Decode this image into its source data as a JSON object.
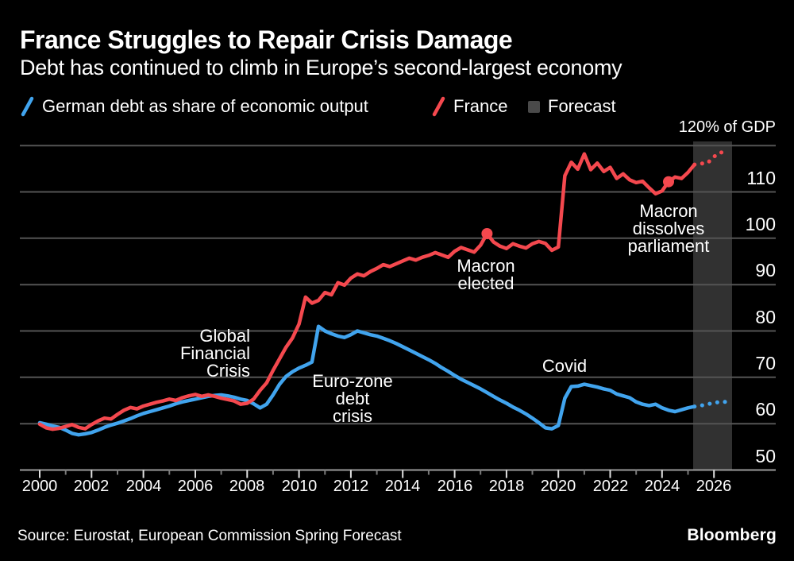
{
  "header": {
    "title": "France Struggles to Repair Crisis Damage",
    "subtitle": "Debt has continued to climb in Europe’s second-largest economy"
  },
  "legend": [
    {
      "label": "German debt as share of economic output",
      "color": "#41a4ee",
      "type": "line"
    },
    {
      "label": "France",
      "color": "#f4484e",
      "type": "line"
    },
    {
      "label": "Forecast",
      "color": "#4a4a4a",
      "type": "box"
    }
  ],
  "axis_unit_label": "120% of GDP",
  "source": "Source: Eurostat, European Commission Spring Forecast",
  "brand": "Bloomberg",
  "colors": {
    "background": "#000000",
    "grid": "#545454",
    "axis": "#9c9c9c",
    "major_tick": "#e0e0e0",
    "minor_tick": "#7a7a7a",
    "forecast_band": "#313131",
    "text": "#ffffff",
    "france": "#f4484e",
    "germany": "#41a4ee"
  },
  "chart_data": {
    "type": "line",
    "title": "France Struggles to Repair Crisis Damage",
    "x_start": 2000,
    "x_step": 0.25,
    "xlim": [
      2000,
      2026.7
    ],
    "ylim": [
      50,
      120
    ],
    "y_gridlines": [
      60,
      70,
      80,
      90,
      100,
      110,
      120
    ],
    "y_tick_labels": [
      110,
      100,
      90,
      80,
      70,
      60,
      50
    ],
    "x_tick_labels": [
      2000,
      2002,
      2004,
      2006,
      2008,
      2010,
      2012,
      2014,
      2016,
      2018,
      2020,
      2022,
      2024,
      2026
    ],
    "x_minor_ticks": [
      2001,
      2003,
      2005,
      2007,
      2009,
      2011,
      2013,
      2015,
      2017,
      2019,
      2021,
      2023,
      2025
    ],
    "forecast_band": {
      "x0": 2025.2,
      "x1": 2026.7
    },
    "series": [
      {
        "name": "Germany",
        "color": "#41a4ee",
        "values": [
          60.2,
          59.9,
          59.5,
          59.2,
          58.6,
          57.9,
          57.6,
          57.8,
          58.1,
          58.6,
          59.2,
          59.7,
          60.1,
          60.6,
          61.1,
          61.7,
          62.2,
          62.6,
          63.0,
          63.4,
          63.8,
          64.3,
          64.7,
          65.0,
          65.3,
          65.6,
          65.9,
          66.1,
          66.2,
          66.0,
          65.7,
          65.3,
          65.0,
          64.3,
          63.4,
          64.2,
          66.2,
          68.5,
          70.2,
          71.2,
          72.0,
          72.6,
          73.3,
          81.0,
          80.0,
          79.4,
          78.9,
          78.6,
          79.2,
          80.0,
          79.6,
          79.2,
          78.9,
          78.4,
          77.9,
          77.3,
          76.6,
          75.9,
          75.2,
          74.5,
          73.8,
          73.0,
          72.1,
          71.3,
          70.4,
          69.6,
          68.9,
          68.2,
          67.5,
          66.7,
          65.9,
          65.1,
          64.4,
          63.6,
          62.9,
          62.1,
          61.2,
          60.2,
          59.1,
          58.9,
          59.6,
          65.5,
          68.0,
          68.1,
          68.5,
          68.2,
          67.9,
          67.5,
          67.2,
          66.4,
          66.0,
          65.6,
          64.7,
          64.2,
          63.9,
          64.2,
          63.4,
          62.9,
          62.6,
          63.0,
          63.4,
          63.7
        ],
        "forecast": [
          63.7,
          63.9,
          64.2,
          64.5,
          64.7,
          64.7
        ],
        "markers": []
      },
      {
        "name": "France",
        "color": "#f4484e",
        "values": [
          59.9,
          59.1,
          58.8,
          59.0,
          59.4,
          59.8,
          59.2,
          58.9,
          59.8,
          60.6,
          61.2,
          61.0,
          62.0,
          62.9,
          63.5,
          63.2,
          63.8,
          64.2,
          64.6,
          64.9,
          65.3,
          65.0,
          65.6,
          66.0,
          66.3,
          65.9,
          66.2,
          65.9,
          65.5,
          65.2,
          64.9,
          64.2,
          64.4,
          65.3,
          67.2,
          68.8,
          71.5,
          74.0,
          76.5,
          78.5,
          81.5,
          87.3,
          86.0,
          86.6,
          88.3,
          87.8,
          90.4,
          89.9,
          91.4,
          92.3,
          91.9,
          92.8,
          93.5,
          94.3,
          93.9,
          94.5,
          95.1,
          95.7,
          95.3,
          95.9,
          96.3,
          96.9,
          96.4,
          95.9,
          97.2,
          98.0,
          97.5,
          97.0,
          98.5,
          101.0,
          99.2,
          98.3,
          97.8,
          98.8,
          98.3,
          97.9,
          98.8,
          99.3,
          98.9,
          97.4,
          98.1,
          113.5,
          116.4,
          114.9,
          118.2,
          114.8,
          116.2,
          114.4,
          115.3,
          112.9,
          113.9,
          112.6,
          112.0,
          112.3,
          110.9,
          109.6,
          110.2,
          112.2,
          113.2,
          112.9,
          114.2,
          115.9
        ],
        "forecast": [
          115.9,
          116.1,
          116.2,
          117.6,
          118.5,
          118.5
        ],
        "markers": [
          {
            "x": 2017.25,
            "y": 101.0
          },
          {
            "x": 2024.25,
            "y": 112.2
          }
        ]
      }
    ],
    "annotations": [
      {
        "id": "global-financial-crisis",
        "lines": [
          "Global",
          "Financial",
          "Crisis"
        ],
        "year": 2008.1,
        "value": 78.9,
        "align": "right"
      },
      {
        "id": "euro-zone-debt-crisis",
        "lines": [
          "Euro-zone",
          "debt",
          "crisis"
        ],
        "year": 2012.05,
        "value": 69.1,
        "align": "center"
      },
      {
        "id": "macron-elected",
        "lines": [
          "Macron",
          "elected"
        ],
        "year": 2017.2,
        "value": 94.0,
        "align": "center"
      },
      {
        "id": "covid",
        "lines": [
          "Covid"
        ],
        "year": 2020.25,
        "value": 72.4,
        "align": "center"
      },
      {
        "id": "macron-dissolves-parliament",
        "lines": [
          "Macron",
          "dissolves",
          "parliament"
        ],
        "year": 2024.25,
        "value": 105.8,
        "align": "center"
      }
    ]
  }
}
